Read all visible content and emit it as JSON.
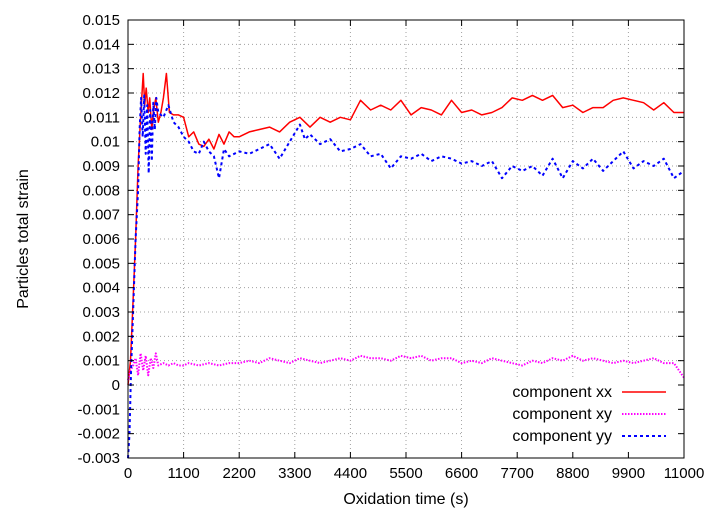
{
  "chart_data": {
    "type": "line",
    "xlabel": "Oxidation time (s)",
    "ylabel": "Particles total strain",
    "xlim": [
      0,
      11000
    ],
    "ylim": [
      -0.003,
      0.015
    ],
    "x_ticks": [
      "0",
      "1100",
      "2200",
      "3300",
      "4400",
      "5500",
      "6600",
      "7700",
      "8800",
      "9900",
      "11000"
    ],
    "y_ticks": [
      "-0.003",
      "-0.002",
      "-0.001",
      "0",
      "0.001",
      "0.002",
      "0.003",
      "0.004",
      "0.005",
      "0.006",
      "0.007",
      "0.008",
      "0.009",
      "0.01",
      "0.011",
      "0.012",
      "0.013",
      "0.014",
      "0.015"
    ],
    "grid": true,
    "legend_position": "bottom-right",
    "series": [
      {
        "name": "component xx",
        "color": "#ff0000",
        "style": "solid",
        "points": [
          [
            0,
            0
          ],
          [
            50,
            0.001
          ],
          [
            100,
            0.0035
          ],
          [
            150,
            0.006
          ],
          [
            200,
            0.009
          ],
          [
            250,
            0.011
          ],
          [
            300,
            0.0128
          ],
          [
            330,
            0.0115
          ],
          [
            360,
            0.0122
          ],
          [
            400,
            0.0112
          ],
          [
            430,
            0.0118
          ],
          [
            470,
            0.0105
          ],
          [
            500,
            0.0112
          ],
          [
            550,
            0.0118
          ],
          [
            600,
            0.0108
          ],
          [
            650,
            0.0112
          ],
          [
            700,
            0.0118
          ],
          [
            760,
            0.0128
          ],
          [
            820,
            0.0112
          ],
          [
            900,
            0.0111
          ],
          [
            1000,
            0.0111
          ],
          [
            1100,
            0.011
          ],
          [
            1200,
            0.0102
          ],
          [
            1300,
            0.0104
          ],
          [
            1400,
            0.0099
          ],
          [
            1500,
            0.0098
          ],
          [
            1600,
            0.0101
          ],
          [
            1700,
            0.0097
          ],
          [
            1800,
            0.0103
          ],
          [
            1900,
            0.0099
          ],
          [
            2000,
            0.0104
          ],
          [
            2100,
            0.0102
          ],
          [
            2200,
            0.0102
          ],
          [
            2400,
            0.0104
          ],
          [
            2600,
            0.0105
          ],
          [
            2800,
            0.0106
          ],
          [
            3000,
            0.0104
          ],
          [
            3200,
            0.0108
          ],
          [
            3400,
            0.011
          ],
          [
            3600,
            0.0106
          ],
          [
            3800,
            0.011
          ],
          [
            4000,
            0.0108
          ],
          [
            4200,
            0.011
          ],
          [
            4400,
            0.0109
          ],
          [
            4600,
            0.0117
          ],
          [
            4800,
            0.0113
          ],
          [
            5000,
            0.0115
          ],
          [
            5200,
            0.0113
          ],
          [
            5400,
            0.0117
          ],
          [
            5600,
            0.0111
          ],
          [
            5800,
            0.0114
          ],
          [
            6000,
            0.0113
          ],
          [
            6200,
            0.0111
          ],
          [
            6400,
            0.0117
          ],
          [
            6600,
            0.0112
          ],
          [
            6800,
            0.0113
          ],
          [
            7000,
            0.0111
          ],
          [
            7200,
            0.0112
          ],
          [
            7400,
            0.0114
          ],
          [
            7600,
            0.0118
          ],
          [
            7800,
            0.0117
          ],
          [
            8000,
            0.0119
          ],
          [
            8200,
            0.0117
          ],
          [
            8400,
            0.0119
          ],
          [
            8600,
            0.0114
          ],
          [
            8800,
            0.0115
          ],
          [
            9000,
            0.0112
          ],
          [
            9200,
            0.0114
          ],
          [
            9400,
            0.0114
          ],
          [
            9600,
            0.0117
          ],
          [
            9800,
            0.0118
          ],
          [
            10000,
            0.0117
          ],
          [
            10200,
            0.0116
          ],
          [
            10400,
            0.0113
          ],
          [
            10600,
            0.0116
          ],
          [
            10800,
            0.0112
          ],
          [
            11000,
            0.0112
          ]
        ]
      },
      {
        "name": "component xy",
        "color": "#ff00ff",
        "style": "dotted",
        "points": [
          [
            0,
            0.0002
          ],
          [
            50,
            0.0006
          ],
          [
            100,
            0.0008
          ],
          [
            150,
            0.0011
          ],
          [
            200,
            0.0004
          ],
          [
            250,
            0.0013
          ],
          [
            300,
            0.0006
          ],
          [
            350,
            0.0012
          ],
          [
            400,
            0.0004
          ],
          [
            450,
            0.0011
          ],
          [
            500,
            0.0007
          ],
          [
            550,
            0.0013
          ],
          [
            600,
            0.0008
          ],
          [
            700,
            0.0009
          ],
          [
            800,
            0.0008
          ],
          [
            900,
            0.0009
          ],
          [
            1000,
            0.0008
          ],
          [
            1100,
            0.0008
          ],
          [
            1200,
            0.0009
          ],
          [
            1400,
            0.0008
          ],
          [
            1600,
            0.0009
          ],
          [
            1800,
            0.0008
          ],
          [
            2000,
            0.0009
          ],
          [
            2200,
            0.0009
          ],
          [
            2400,
            0.001
          ],
          [
            2600,
            0.0009
          ],
          [
            2800,
            0.0011
          ],
          [
            3000,
            0.001
          ],
          [
            3200,
            0.0009
          ],
          [
            3400,
            0.0011
          ],
          [
            3600,
            0.001
          ],
          [
            3800,
            0.0009
          ],
          [
            4000,
            0.001
          ],
          [
            4200,
            0.0011
          ],
          [
            4400,
            0.001
          ],
          [
            4600,
            0.0012
          ],
          [
            4800,
            0.0011
          ],
          [
            5000,
            0.0011
          ],
          [
            5200,
            0.001
          ],
          [
            5400,
            0.0012
          ],
          [
            5600,
            0.0011
          ],
          [
            5800,
            0.0012
          ],
          [
            6000,
            0.001
          ],
          [
            6200,
            0.0011
          ],
          [
            6400,
            0.0011
          ],
          [
            6600,
            0.0009
          ],
          [
            6800,
            0.001
          ],
          [
            7000,
            0.0009
          ],
          [
            7200,
            0.0011
          ],
          [
            7400,
            0.001
          ],
          [
            7600,
            0.0009
          ],
          [
            7800,
            0.0008
          ],
          [
            8000,
            0.001
          ],
          [
            8200,
            0.0009
          ],
          [
            8400,
            0.0011
          ],
          [
            8600,
            0.001
          ],
          [
            8800,
            0.0012
          ],
          [
            9000,
            0.001
          ],
          [
            9200,
            0.0011
          ],
          [
            9400,
            0.001
          ],
          [
            9600,
            0.0009
          ],
          [
            9800,
            0.001
          ],
          [
            10000,
            0.0009
          ],
          [
            10200,
            0.001
          ],
          [
            10400,
            0.0011
          ],
          [
            10600,
            0.0009
          ],
          [
            10800,
            0.0009
          ],
          [
            11000,
            0.0003
          ]
        ]
      },
      {
        "name": "component yy",
        "color": "#0000ff",
        "style": "dotted",
        "points": [
          [
            0,
            -0.003
          ],
          [
            30,
            -0.002
          ],
          [
            60,
            0.0005
          ],
          [
            100,
            0.003
          ],
          [
            150,
            0.006
          ],
          [
            200,
            0.008
          ],
          [
            230,
            0.0105
          ],
          [
            260,
            0.0118
          ],
          [
            290,
            0.0102
          ],
          [
            320,
            0.0119
          ],
          [
            350,
            0.0095
          ],
          [
            380,
            0.0115
          ],
          [
            410,
            0.0087
          ],
          [
            440,
            0.0113
          ],
          [
            470,
            0.0092
          ],
          [
            500,
            0.0116
          ],
          [
            530,
            0.0105
          ],
          [
            560,
            0.0118
          ],
          [
            600,
            0.0112
          ],
          [
            700,
            0.011
          ],
          [
            800,
            0.0115
          ],
          [
            900,
            0.0108
          ],
          [
            1000,
            0.0106
          ],
          [
            1100,
            0.0102
          ],
          [
            1200,
            0.01
          ],
          [
            1300,
            0.0096
          ],
          [
            1400,
            0.0095
          ],
          [
            1500,
            0.01
          ],
          [
            1600,
            0.0096
          ],
          [
            1700,
            0.0094
          ],
          [
            1800,
            0.0085
          ],
          [
            1900,
            0.0097
          ],
          [
            2000,
            0.0094
          ],
          [
            2200,
            0.0096
          ],
          [
            2400,
            0.0095
          ],
          [
            2600,
            0.0097
          ],
          [
            2800,
            0.0099
          ],
          [
            3000,
            0.0093
          ],
          [
            3200,
            0.01
          ],
          [
            3400,
            0.0107
          ],
          [
            3500,
            0.0101
          ],
          [
            3600,
            0.0103
          ],
          [
            3800,
            0.0099
          ],
          [
            4000,
            0.0101
          ],
          [
            4200,
            0.0096
          ],
          [
            4400,
            0.0097
          ],
          [
            4600,
            0.0099
          ],
          [
            4800,
            0.0094
          ],
          [
            5000,
            0.0095
          ],
          [
            5200,
            0.0089
          ],
          [
            5400,
            0.0094
          ],
          [
            5600,
            0.0093
          ],
          [
            5800,
            0.0095
          ],
          [
            6000,
            0.0092
          ],
          [
            6200,
            0.0094
          ],
          [
            6400,
            0.0093
          ],
          [
            6600,
            0.0091
          ],
          [
            6800,
            0.0092
          ],
          [
            7000,
            0.009
          ],
          [
            7200,
            0.0092
          ],
          [
            7400,
            0.0085
          ],
          [
            7600,
            0.009
          ],
          [
            7800,
            0.0088
          ],
          [
            8000,
            0.009
          ],
          [
            8200,
            0.0086
          ],
          [
            8400,
            0.0093
          ],
          [
            8600,
            0.0085
          ],
          [
            8800,
            0.0092
          ],
          [
            9000,
            0.0089
          ],
          [
            9200,
            0.0093
          ],
          [
            9400,
            0.0088
          ],
          [
            9600,
            0.0092
          ],
          [
            9800,
            0.0096
          ],
          [
            10000,
            0.0089
          ],
          [
            10200,
            0.0092
          ],
          [
            10400,
            0.009
          ],
          [
            10600,
            0.0093
          ],
          [
            10800,
            0.0085
          ],
          [
            11000,
            0.0088
          ]
        ]
      }
    ]
  }
}
